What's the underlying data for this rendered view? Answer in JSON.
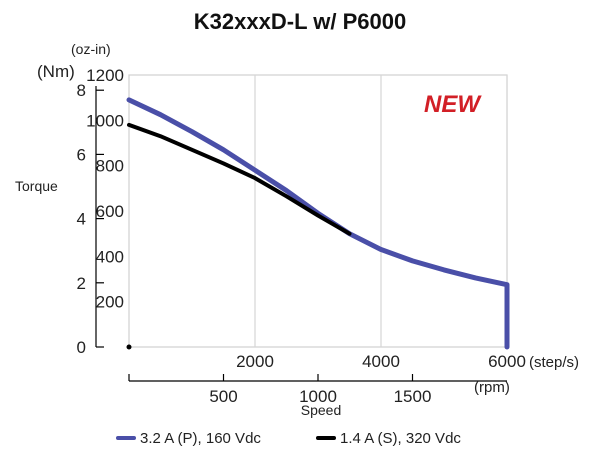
{
  "chart_data": {
    "type": "line",
    "title": "K32xxxD-L w/ P6000",
    "badge": "NEW",
    "xlabel": "Speed",
    "ylabel": "Torque",
    "left_axis_unit": "(Nm)",
    "right_axis_unit": "(oz-in)",
    "x_top_unit": "(step/s)",
    "x_bottom_unit": "(rpm)",
    "x_top_ticks": [
      {
        "value": 2000,
        "label": "2000"
      },
      {
        "value": 4000,
        "label": "4000"
      },
      {
        "value": 6000,
        "label": "6000"
      }
    ],
    "x_bottom_ticks": [
      {
        "value": 500,
        "label": "500"
      },
      {
        "value": 1000,
        "label": "1000"
      },
      {
        "value": 1500,
        "label": "1500"
      }
    ],
    "y_left_ticks": [
      {
        "value": 0,
        "label": "0"
      },
      {
        "value": 2,
        "label": "2"
      },
      {
        "value": 4,
        "label": "4"
      },
      {
        "value": 6,
        "label": "6"
      },
      {
        "value": 8,
        "label": "8"
      }
    ],
    "y_right_ticks": [
      {
        "value": 200,
        "label": "200"
      },
      {
        "value": 400,
        "label": "400"
      },
      {
        "value": 600,
        "label": "600"
      },
      {
        "value": 800,
        "label": "800"
      },
      {
        "value": 1000,
        "label": "1000"
      },
      {
        "value": 1200,
        "label": "1200"
      }
    ],
    "xlim": [
      0,
      6000
    ],
    "ylim_oz_in": [
      0,
      1200
    ],
    "grid": true,
    "legend": "bottom",
    "series": [
      {
        "name": "3.2 A (P), 160 Vdc",
        "color": "#4a4fa8",
        "points": [
          [
            0,
            1090
          ],
          [
            500,
            1025
          ],
          [
            1000,
            950
          ],
          [
            1500,
            870
          ],
          [
            2000,
            780
          ],
          [
            2500,
            690
          ],
          [
            3000,
            590
          ],
          [
            3500,
            500
          ],
          [
            4000,
            430
          ],
          [
            4500,
            380
          ],
          [
            5000,
            340
          ],
          [
            5500,
            305
          ],
          [
            6000,
            275
          ],
          [
            6000,
            0
          ]
        ]
      },
      {
        "name": "1.4 A (S), 320 Vdc",
        "color": "#000000",
        "points": [
          [
            0,
            980
          ],
          [
            500,
            930
          ],
          [
            1000,
            870
          ],
          [
            1500,
            810
          ],
          [
            2000,
            745
          ],
          [
            2500,
            665
          ],
          [
            3000,
            580
          ],
          [
            3500,
            500
          ]
        ]
      }
    ]
  }
}
